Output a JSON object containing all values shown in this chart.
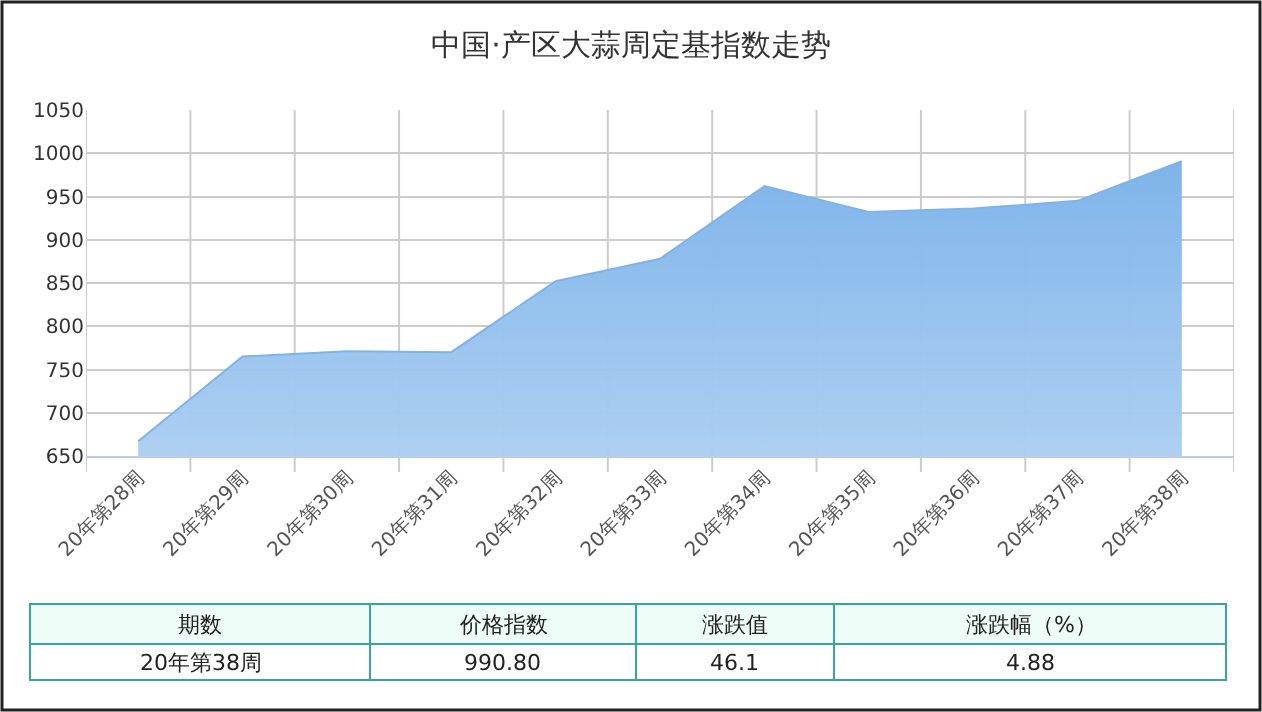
{
  "chart_data": {
    "type": "area",
    "title": "中国·产区大蒜周定基指数走势",
    "categories": [
      "20年第28周",
      "20年第29周",
      "20年第30周",
      "20年第31周",
      "20年第32周",
      "20年第33周",
      "20年第34周",
      "20年第35周",
      "20年第36周",
      "20年第37周",
      "20年第38周"
    ],
    "series": [
      {
        "color": "#7eb4ea",
        "values": [
          667,
          765,
          771,
          770,
          852,
          878,
          962,
          932,
          936,
          945,
          990.8
        ]
      }
    ],
    "ylim": [
      650,
      1050
    ],
    "yticks": [
      650,
      700,
      750,
      800,
      850,
      900,
      950,
      1000,
      1050
    ],
    "grid": true,
    "annotations": [
      "期数",
      "价格指数",
      "涨跌值",
      "涨跌幅（%）",
      "20年第38周",
      "990.80",
      "46.1",
      "4.88"
    ]
  }
}
